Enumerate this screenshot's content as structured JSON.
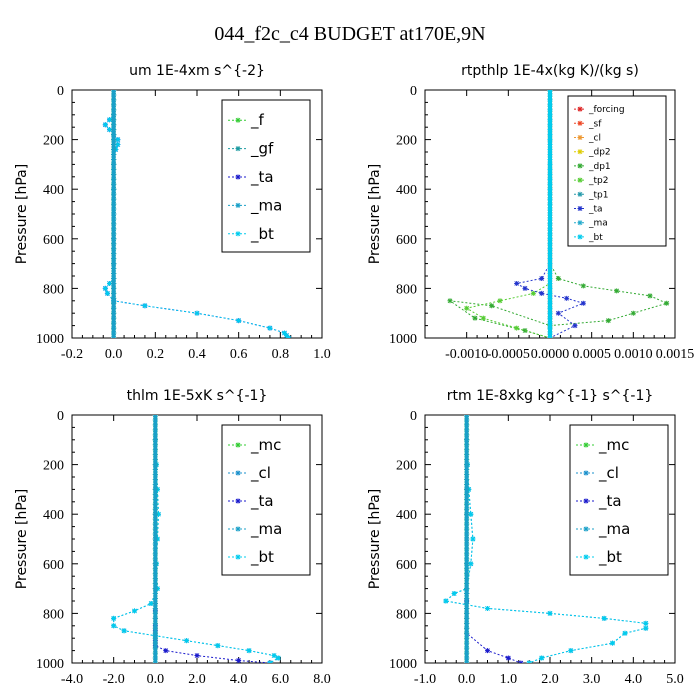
{
  "figure": {
    "title": "044_f2c_c4  BUDGET at170E,9N"
  },
  "colors": {
    "f": "#33cc33",
    "gf": "#1a9aa0",
    "ta": "#1a1acc",
    "ma": "#1aa0c8",
    "bt": "#00ccee",
    "mc": "#33cc33",
    "cl": "#1a90cc",
    "forcing": "#dd2222",
    "sf": "#ee4422",
    "cl_r": "#ee9933",
    "dp2": "#ddcc00",
    "dp1": "#33aa33",
    "tp2": "#55cc33",
    "tp1": "#2299aa",
    "ta_r": "#2233cc",
    "ma_r": "#22aacc",
    "bt_r": "#00ccee"
  },
  "chart_data": [
    {
      "type": "line",
      "title": "um  1E-4xm s^{-2}",
      "ylabel": "Pressure [hPa]",
      "xlim": [
        -0.2,
        1.0
      ],
      "ylim": [
        1000,
        0
      ],
      "xticks": [
        "-0.2",
        "0.0",
        "0.2",
        "0.4",
        "0.6",
        "0.8",
        "1.0"
      ],
      "xtick_values": [
        -0.2,
        0.0,
        0.2,
        0.4,
        0.6,
        0.8,
        1.0
      ],
      "yticks": [
        "0",
        "200",
        "400",
        "600",
        "800",
        "1000"
      ],
      "ytick_values": [
        0,
        200,
        400,
        600,
        800,
        1000
      ],
      "legend": {
        "position": "top-right",
        "style": "large"
      },
      "series": [
        {
          "name": "_f",
          "color_key": "f",
          "x": [
            0,
            0,
            0,
            0,
            0,
            0,
            0,
            0,
            0,
            0,
            0
          ],
          "y": [
            0,
            100,
            200,
            300,
            400,
            500,
            600,
            700,
            800,
            900,
            1000
          ]
        },
        {
          "name": "_gf",
          "color_key": "gf",
          "x": [
            0,
            0,
            0,
            0,
            0,
            0,
            0,
            0,
            0,
            0,
            0
          ],
          "y": [
            0,
            100,
            200,
            300,
            400,
            500,
            600,
            700,
            800,
            900,
            1000
          ]
        },
        {
          "name": "_ta",
          "color_key": "ta",
          "x": [
            0,
            0,
            -0.02,
            -0.04,
            -0.02,
            0.0,
            0.02,
            0.02,
            0.01,
            0,
            0,
            0,
            0,
            0,
            0,
            -0.02,
            -0.04,
            -0.03,
            0.0,
            0.15,
            0.4,
            0.6,
            0.75,
            0.82,
            0.83,
            0.84
          ],
          "y": [
            0,
            100,
            120,
            140,
            160,
            180,
            200,
            220,
            240,
            300,
            400,
            500,
            600,
            700,
            760,
            780,
            800,
            820,
            850,
            870,
            900,
            930,
            960,
            980,
            990,
            1000
          ]
        },
        {
          "name": "_ma",
          "color_key": "ma",
          "x": [
            0,
            0,
            0,
            0,
            0,
            0,
            0,
            0,
            0,
            0,
            0
          ],
          "y": [
            0,
            100,
            200,
            300,
            400,
            500,
            600,
            700,
            800,
            900,
            1000
          ]
        },
        {
          "name": "_bt",
          "color_key": "bt",
          "x": [
            0,
            0,
            -0.02,
            -0.04,
            -0.02,
            0.0,
            0.02,
            0.02,
            0.01,
            0,
            0,
            0,
            0,
            0,
            0,
            -0.02,
            -0.04,
            -0.03,
            0.0,
            0.15,
            0.4,
            0.6,
            0.75,
            0.82,
            0.83,
            0.84
          ],
          "y": [
            0,
            100,
            120,
            140,
            160,
            180,
            200,
            220,
            240,
            300,
            400,
            500,
            600,
            700,
            760,
            780,
            800,
            820,
            850,
            870,
            900,
            930,
            960,
            980,
            990,
            1000
          ]
        }
      ]
    },
    {
      "type": "line",
      "title": "rtpthlp  1E-4x(kg K)/(kg s)",
      "ylabel": "Pressure [hPa]",
      "xlim": [
        -0.0015,
        0.0015
      ],
      "ylim": [
        1000,
        0
      ],
      "xticks": [
        "-0.0010",
        "-0.0005",
        "0.0000",
        "0.0005",
        "0.0010",
        "0.0015"
      ],
      "xtick_values": [
        -0.001,
        -0.0005,
        0.0,
        0.0005,
        0.001,
        0.0015
      ],
      "yticks": [
        "0",
        "200",
        "400",
        "600",
        "800",
        "1000"
      ],
      "ytick_values": [
        0,
        200,
        400,
        600,
        800,
        1000
      ],
      "legend": {
        "position": "top-right",
        "style": "small"
      },
      "series": [
        {
          "name": "_forcing",
          "color_key": "forcing",
          "x": [
            0,
            0,
            0,
            0,
            0,
            0,
            0,
            0,
            0,
            0,
            0
          ],
          "y": [
            0,
            100,
            200,
            300,
            400,
            500,
            600,
            700,
            800,
            900,
            1000
          ]
        },
        {
          "name": "_sf",
          "color_key": "sf",
          "x": [
            0,
            0,
            0,
            0,
            0,
            0,
            0,
            0,
            0,
            0,
            0
          ],
          "y": [
            0,
            100,
            200,
            300,
            400,
            500,
            600,
            700,
            800,
            900,
            1000
          ]
        },
        {
          "name": "_cl",
          "color_key": "cl_r",
          "x": [
            0,
            0,
            0,
            0,
            0,
            0,
            0,
            0,
            0,
            0,
            0
          ],
          "y": [
            0,
            100,
            200,
            300,
            400,
            500,
            600,
            700,
            800,
            900,
            1000
          ]
        },
        {
          "name": "_dp2",
          "color_key": "dp2",
          "x": [
            0,
            0,
            0,
            0,
            0,
            0,
            0,
            0,
            0,
            0,
            0
          ],
          "y": [
            0,
            100,
            200,
            300,
            400,
            500,
            600,
            700,
            800,
            900,
            1000
          ]
        },
        {
          "name": "_dp1",
          "color_key": "dp1",
          "x": [
            0,
            0,
            0,
            0,
            0.0001,
            0.0004,
            0.0008,
            0.0012,
            0.0014,
            0.001,
            0.0007,
            0.0,
            -0.0007,
            -0.0012,
            -0.0009,
            -0.0003,
            0.0
          ],
          "y": [
            0,
            200,
            400,
            700,
            760,
            790,
            810,
            830,
            860,
            900,
            930,
            950,
            870,
            850,
            920,
            970,
            1000
          ]
        },
        {
          "name": "_tp2",
          "color_key": "tp2",
          "x": [
            0,
            0,
            0,
            0,
            -0.0002,
            -0.0006,
            -0.001,
            -0.0008,
            -0.0004,
            0.0
          ],
          "y": [
            0,
            200,
            400,
            780,
            820,
            850,
            880,
            920,
            960,
            1000
          ]
        },
        {
          "name": "_tp1",
          "color_key": "tp1",
          "x": [
            0,
            0,
            0,
            0,
            0,
            0,
            0,
            0,
            0,
            0,
            0
          ],
          "y": [
            0,
            100,
            200,
            300,
            400,
            500,
            600,
            700,
            800,
            900,
            1000
          ]
        },
        {
          "name": "_ta",
          "color_key": "ta_r",
          "x": [
            0,
            0,
            0,
            -0.0001,
            -0.0004,
            -0.0003,
            -0.0001,
            0.0002,
            0.0004,
            0.0001,
            0.0003,
            0.0
          ],
          "y": [
            0,
            200,
            700,
            760,
            780,
            800,
            820,
            840,
            860,
            900,
            950,
            1000
          ]
        },
        {
          "name": "_ma",
          "color_key": "ma_r",
          "x": [
            0,
            0,
            0,
            0,
            0,
            0,
            0,
            0,
            0,
            0,
            0
          ],
          "y": [
            0,
            100,
            200,
            300,
            400,
            500,
            600,
            700,
            800,
            900,
            1000
          ]
        },
        {
          "name": "_bt",
          "color_key": "bt_r",
          "x": [
            0,
            0,
            0,
            0,
            0,
            0,
            0,
            0,
            0,
            0,
            0
          ],
          "y": [
            0,
            100,
            200,
            300,
            400,
            500,
            600,
            700,
            800,
            900,
            1000
          ]
        }
      ]
    },
    {
      "type": "line",
      "title": "thlm  1E-5xK s^{-1}",
      "ylabel": "Pressure [hPa]",
      "xlim": [
        -4.0,
        8.0
      ],
      "ylim": [
        1000,
        0
      ],
      "xticks": [
        "-4.0",
        "-2.0",
        "0.0",
        "2.0",
        "4.0",
        "6.0",
        "8.0"
      ],
      "xtick_values": [
        -4.0,
        -2.0,
        0.0,
        2.0,
        4.0,
        6.0,
        8.0
      ],
      "yticks": [
        "0",
        "200",
        "400",
        "600",
        "800",
        "1000"
      ],
      "ytick_values": [
        0,
        200,
        400,
        600,
        800,
        1000
      ],
      "legend": {
        "position": "top-right",
        "style": "large"
      },
      "series": [
        {
          "name": "_mc",
          "color_key": "mc",
          "x": [
            0,
            0,
            0,
            0,
            0,
            0,
            0,
            0,
            0,
            0,
            0
          ],
          "y": [
            0,
            100,
            200,
            300,
            400,
            500,
            600,
            700,
            800,
            900,
            1000
          ]
        },
        {
          "name": "_cl",
          "color_key": "cl",
          "x": [
            0,
            0,
            0.05,
            0.1,
            0.15,
            0.1,
            0.05,
            0.1,
            -0.2,
            -1.0,
            -2.0,
            -2.0,
            -1.5,
            0.0,
            1.5,
            3.0,
            4.5,
            5.7,
            5.9,
            5.5
          ],
          "y": [
            0,
            100,
            200,
            300,
            400,
            500,
            600,
            700,
            760,
            790,
            820,
            850,
            870,
            890,
            910,
            930,
            950,
            970,
            980,
            1000
          ]
        },
        {
          "name": "_ta",
          "color_key": "ta",
          "x": [
            0,
            0,
            0,
            0,
            0,
            0,
            0,
            0,
            0,
            0,
            0,
            0,
            0,
            0,
            0,
            0,
            0.5,
            2,
            4,
            5.5
          ],
          "y": [
            0,
            100,
            200,
            300,
            400,
            500,
            600,
            700,
            760,
            790,
            820,
            850,
            870,
            890,
            910,
            930,
            950,
            970,
            990,
            1000
          ]
        },
        {
          "name": "_ma",
          "color_key": "ma",
          "x": [
            0,
            0,
            0,
            0,
            0,
            0,
            0,
            0,
            0,
            0,
            0
          ],
          "y": [
            0,
            100,
            200,
            300,
            400,
            500,
            600,
            700,
            800,
            900,
            1000
          ]
        },
        {
          "name": "_bt",
          "color_key": "bt",
          "x": [
            0,
            0,
            0.05,
            0.1,
            0.15,
            0.1,
            0.05,
            0.1,
            -0.2,
            -1.0,
            -2.0,
            -2.0,
            -1.5,
            0.0,
            1.5,
            3.0,
            4.5,
            5.7,
            5.9,
            5.5
          ],
          "y": [
            0,
            100,
            200,
            300,
            400,
            500,
            600,
            700,
            760,
            790,
            820,
            850,
            870,
            890,
            910,
            930,
            950,
            970,
            980,
            1000
          ]
        }
      ]
    },
    {
      "type": "line",
      "title": "rtm  1E-8xkg kg^{-1} s^{-1}",
      "ylabel": "Pressure [hPa]",
      "xlim": [
        -1.0,
        5.0
      ],
      "ylim": [
        1000,
        0
      ],
      "xticks": [
        "-1.0",
        "0.0",
        "1.0",
        "2.0",
        "3.0",
        "4.0",
        "5.0"
      ],
      "xtick_values": [
        -1.0,
        0.0,
        1.0,
        2.0,
        3.0,
        4.0,
        5.0
      ],
      "yticks": [
        "0",
        "200",
        "400",
        "600",
        "800",
        "1000"
      ],
      "ytick_values": [
        0,
        200,
        400,
        600,
        800,
        1000
      ],
      "legend": {
        "position": "top-right",
        "style": "large"
      },
      "series": [
        {
          "name": "_mc",
          "color_key": "mc",
          "x": [
            0,
            0,
            0,
            0,
            0,
            0,
            0,
            0,
            0,
            0,
            0
          ],
          "y": [
            0,
            100,
            200,
            300,
            400,
            500,
            600,
            700,
            800,
            900,
            1000
          ]
        },
        {
          "name": "_cl",
          "color_key": "cl",
          "x": [
            0,
            0,
            0.02,
            0.05,
            0.1,
            0.15,
            0.1,
            0.0,
            -0.3,
            -0.5,
            0.5,
            2.0,
            3.3,
            4.3,
            4.3,
            3.8,
            3.5,
            2.5,
            1.8,
            1.5
          ],
          "y": [
            0,
            100,
            200,
            300,
            400,
            500,
            600,
            700,
            720,
            750,
            780,
            800,
            820,
            840,
            860,
            880,
            920,
            950,
            980,
            1000
          ]
        },
        {
          "name": "_ta",
          "color_key": "ta",
          "x": [
            0,
            0,
            0,
            0,
            0,
            0,
            0,
            0,
            0,
            0,
            0,
            0,
            0,
            0,
            0,
            0,
            0.5,
            1.0,
            1.3
          ],
          "y": [
            0,
            100,
            200,
            300,
            400,
            500,
            600,
            700,
            720,
            750,
            780,
            800,
            820,
            840,
            860,
            880,
            950,
            980,
            1000
          ]
        },
        {
          "name": "_ma",
          "color_key": "ma",
          "x": [
            0,
            0,
            0,
            0,
            0,
            0,
            0,
            0,
            0,
            0,
            0
          ],
          "y": [
            0,
            100,
            200,
            300,
            400,
            500,
            600,
            700,
            800,
            900,
            1000
          ]
        },
        {
          "name": "_bt",
          "color_key": "bt",
          "x": [
            0,
            0,
            0.02,
            0.05,
            0.1,
            0.15,
            0.1,
            0.0,
            -0.3,
            -0.5,
            0.5,
            2.0,
            3.3,
            4.3,
            4.3,
            3.8,
            3.5,
            2.5,
            1.8,
            1.5
          ],
          "y": [
            0,
            100,
            200,
            300,
            400,
            500,
            600,
            700,
            720,
            750,
            780,
            800,
            820,
            840,
            860,
            880,
            920,
            950,
            980,
            1000
          ]
        }
      ]
    }
  ]
}
